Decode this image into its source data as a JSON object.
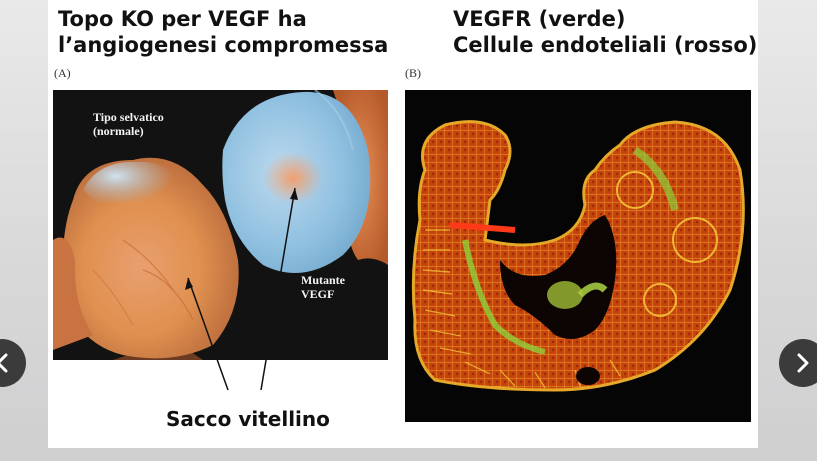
{
  "slide": {
    "title_left": "Topo KO per VEGF ha\nl’angiogenesi compromessa",
    "title_right": "VEGFR (verde)\nCellule endoteliali (rosso)",
    "panel_a": {
      "label": "(A)",
      "text_wildtype": "Tipo selvatico\n(normale)",
      "text_mutant": "Mutante\nVEGF"
    },
    "panel_b": {
      "label": "(B)"
    },
    "caption": "Sacco vitellino"
  },
  "navigation": {
    "prev_icon": "chevron-left-icon",
    "next_icon": "chevron-right-icon"
  },
  "colors": {
    "nav_button": "#3b3b3b",
    "vegfr_green": "#7fd13a",
    "endothelial_red": "#e23a16"
  }
}
